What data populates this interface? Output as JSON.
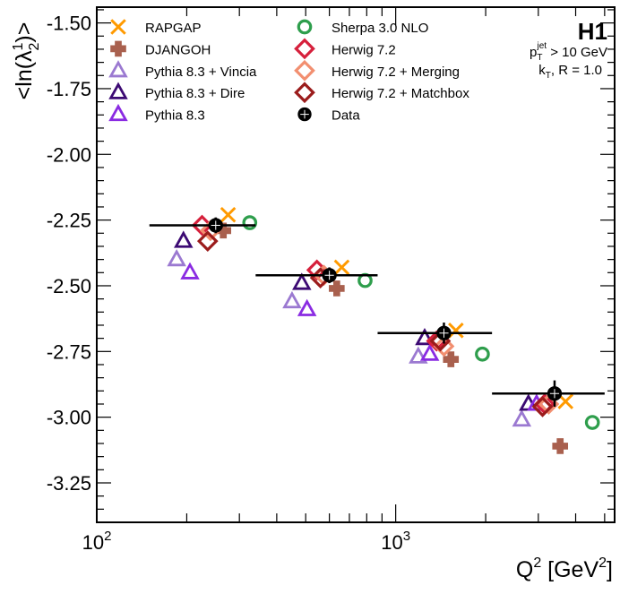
{
  "chart_data": {
    "type": "scatter",
    "ylabel": "<ln(λ2¹)>",
    "xlabel": "Q² [GeV²]",
    "x_scale": "log",
    "xlim": [
      100,
      5400
    ],
    "ylim": [
      -3.4,
      -1.44
    ],
    "y_ticks": [
      -1.5,
      -1.75,
      -2.0,
      -2.25,
      -2.5,
      -2.75,
      -3.0,
      -3.25
    ],
    "y_tick_labels": [
      "-1.50",
      "-1.75",
      "-2.00",
      "-2.25",
      "-2.50",
      "-2.75",
      "-3.00",
      "-3.25"
    ],
    "x_ticks": [
      100,
      1000
    ],
    "x_tick_labels": [
      "10²",
      "10³"
    ],
    "experiment_label": "H1",
    "cut_labels": [
      "p_T^jet > 10 GeV",
      "k_T, R = 1.0"
    ],
    "legend_position": "top-left",
    "bins": [
      {
        "x_low": 150,
        "x_high": 340,
        "x_center": 250
      },
      {
        "x_low": 340,
        "x_high": 870,
        "x_center": 600
      },
      {
        "x_low": 870,
        "x_high": 2100,
        "x_center": 1450
      },
      {
        "x_low": 2100,
        "x_high": 5000,
        "x_center": 3400
      }
    ],
    "series": [
      {
        "name": "RAPGAP",
        "color": "#ff9a00",
        "marker": "cross-x",
        "x": [
          275,
          660,
          1590,
          3700
        ],
        "y": [
          -2.23,
          -2.43,
          -2.67,
          -2.94
        ]
      },
      {
        "name": "DJANGOH",
        "color": "#a9604e",
        "marker": "cross-plus",
        "x": [
          265,
          635,
          1530,
          3550
        ],
        "y": [
          -2.29,
          -2.51,
          -2.78,
          -3.11
        ]
      },
      {
        "name": "Pythia 8.3 + Vincia",
        "color": "#9b79d1",
        "marker": "triangle-open",
        "x": [
          185,
          450,
          1190,
          2640
        ],
        "y": [
          -2.4,
          -2.56,
          -2.77,
          -3.01
        ]
      },
      {
        "name": "Pythia 8.3 + Dire",
        "color": "#3c0a73",
        "marker": "triangle-open",
        "x": [
          195,
          485,
          1250,
          2780
        ],
        "y": [
          -2.33,
          -2.49,
          -2.7,
          -2.95
        ]
      },
      {
        "name": "Pythia 8.3",
        "color": "#8a2be2",
        "marker": "triangle-open",
        "x": [
          205,
          505,
          1300,
          2960
        ],
        "y": [
          -2.45,
          -2.59,
          -2.76,
          -2.95
        ]
      },
      {
        "name": "Sherpa 3.0 NLO",
        "color": "#2e9e4c",
        "marker": "circle-open",
        "x": [
          325,
          790,
          1950,
          4550
        ],
        "y": [
          -2.26,
          -2.48,
          -2.76,
          -3.02
        ]
      },
      {
        "name": "Herwig 7.2",
        "color": "#d6203c",
        "marker": "diamond-open",
        "x": [
          225,
          545,
          1370,
          3150
        ],
        "y": [
          -2.27,
          -2.44,
          -2.71,
          -2.95
        ]
      },
      {
        "name": "Herwig 7.2 + Merging",
        "color": "#f28f70",
        "marker": "diamond-open",
        "x": [
          240,
          575,
          1450,
          3250
        ],
        "y": [
          -2.29,
          -2.46,
          -2.73,
          -2.95
        ]
      },
      {
        "name": "Herwig 7.2 + Matchbox",
        "color": "#9b1c1c",
        "marker": "diamond-open",
        "x": [
          235,
          560,
          1410,
          3100
        ],
        "y": [
          -2.33,
          -2.47,
          -2.71,
          -2.96
        ]
      },
      {
        "name": "Data",
        "color": "#000000",
        "marker": "data",
        "x": [
          250,
          600,
          1450,
          3400
        ],
        "y": [
          -2.27,
          -2.46,
          -2.68,
          -2.91
        ],
        "y_err": [
          0.03,
          0.03,
          0.04,
          0.05
        ]
      }
    ]
  }
}
